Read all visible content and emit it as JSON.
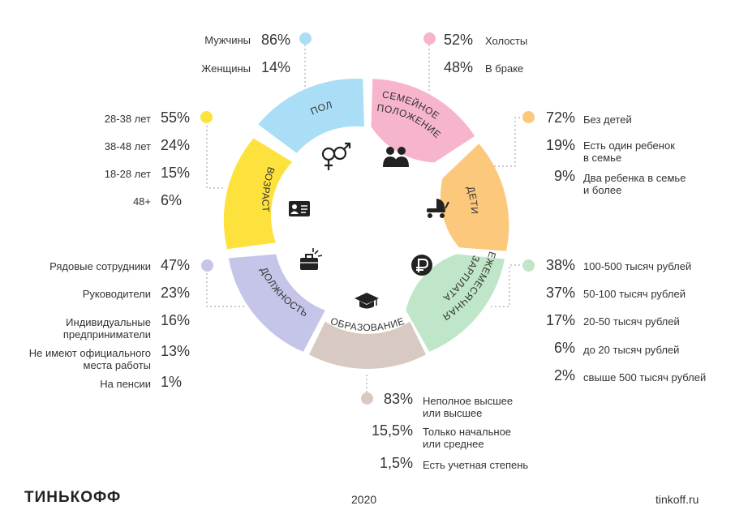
{
  "colors": {
    "gender": "#a9def6",
    "marital": "#f7b4cd",
    "children": "#fbc87c",
    "salary": "#bfe6c8",
    "education": "#d8c9c3",
    "position": "#c5c4e9",
    "age": "#fde23e"
  },
  "segments": {
    "gender": "ПОЛ",
    "marital": [
      "СЕМЕЙНОЕ",
      "ПОЛОЖЕНИЕ"
    ],
    "children": "ДЕТИ",
    "salary": [
      "ЕЖЕМЕСЯЧНАЯ",
      "ЗАРПЛАТА"
    ],
    "education": "ОБРАЗОВАНИЕ",
    "position": "ДОЛЖНОСТЬ",
    "age": "ВОЗРАСТ"
  },
  "icons": [
    "gender-icon",
    "family-icon",
    "stroller-icon",
    "ruble-icon",
    "graduation-cap-icon",
    "briefcase-icon",
    "id-card-icon"
  ],
  "gender": [
    {
      "label": "Мужчины",
      "value": "86%"
    },
    {
      "label": "Женщины",
      "value": "14%"
    }
  ],
  "marital": [
    {
      "label": "Холосты",
      "value": "52%"
    },
    {
      "label": "В браке",
      "value": "48%"
    }
  ],
  "children": [
    {
      "label": "Без детей",
      "value": "72%"
    },
    {
      "label": [
        "Есть один ребенок",
        "в семье"
      ],
      "value": "19%"
    },
    {
      "label": [
        "Два ребенка в семье",
        "и более"
      ],
      "value": "9%"
    }
  ],
  "salary": [
    {
      "label": "100-500 тысяч рублей",
      "value": "38%"
    },
    {
      "label": "50-100 тысяч рублей",
      "value": "37%"
    },
    {
      "label": "20-50 тысяч рублей",
      "value": "17%"
    },
    {
      "label": "до 20 тысяч рублей",
      "value": "6%"
    },
    {
      "label": "свыше 500 тысяч рублей",
      "value": "2%"
    }
  ],
  "education": [
    {
      "label": [
        "Неполное высшее",
        "или высшее"
      ],
      "value": "83%"
    },
    {
      "label": [
        "Только начальное",
        "или среднее"
      ],
      "value": "15,5%"
    },
    {
      "label": "Есть учетная степень",
      "value": "1,5%"
    }
  ],
  "position": [
    {
      "label": "Рядовые сотрудники",
      "value": "47%"
    },
    {
      "label": "Руководители",
      "value": "23%"
    },
    {
      "label": [
        "Индивидуальные",
        "предприниматели"
      ],
      "value": "16%"
    },
    {
      "label": [
        "Не имеют официального",
        "места работы"
      ],
      "value": "13%"
    },
    {
      "label": "На пенсии",
      "value": "1%"
    }
  ],
  "age": [
    {
      "label": "28-38 лет",
      "value": "55%"
    },
    {
      "label": "38-48 лет",
      "value": "24%"
    },
    {
      "label": "18-28 лет",
      "value": "15%"
    },
    {
      "label": "48+",
      "value": "6%"
    }
  ],
  "footer": {
    "brand": "ТИНЬКОФФ",
    "year": "2020",
    "site": "tinkoff.ru"
  }
}
